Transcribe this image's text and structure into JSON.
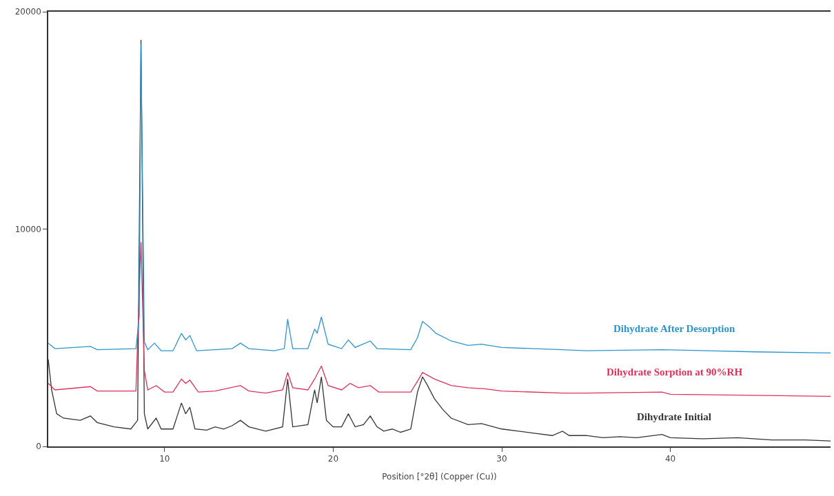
{
  "chart_data": {
    "type": "line",
    "xlabel": "Position [°2θ] (Copper (Cu))",
    "xlim": [
      3.1,
      49.5
    ],
    "xticks": [
      10,
      20,
      30,
      40
    ],
    "ylim": [
      0,
      20000
    ],
    "yticks": [
      0,
      10000,
      20000
    ],
    "legend": false,
    "marker": "none",
    "line_style": "solid",
    "series": [
      {
        "name": "Dihydrate After Desorption",
        "color": "#2a95cf",
        "x": [
          3.1,
          3.5,
          5.6,
          6,
          8.3,
          8.5,
          8.6,
          8.8,
          9.0,
          9.4,
          9.8,
          10.5,
          11.0,
          11.25,
          11.5,
          11.9,
          13,
          14.0,
          14.5,
          15,
          16.5,
          17.1,
          17.3,
          17.6,
          18.5,
          18.9,
          19.05,
          19.3,
          19.7,
          20.5,
          20.9,
          21.3,
          22.2,
          22.6,
          24.6,
          25.0,
          25.3,
          25.7,
          26.1,
          27,
          28,
          28.8,
          30,
          33.6,
          35,
          39.5,
          45,
          49.5
        ],
        "values": [
          4750,
          4500,
          4600,
          4450,
          4500,
          6000,
          18500,
          4800,
          4450,
          4750,
          4400,
          4400,
          5200,
          4900,
          5100,
          4400,
          4450,
          4500,
          4750,
          4500,
          4400,
          4500,
          5850,
          4500,
          4500,
          5400,
          5200,
          5950,
          4700,
          4500,
          4900,
          4550,
          4850,
          4500,
          4450,
          5000,
          5750,
          5500,
          5200,
          4850,
          4650,
          4700,
          4550,
          4450,
          4400,
          4450,
          4350,
          4300
        ]
      },
      {
        "name": "Dihydrate Sorption at 90%RH",
        "color": "#e0305a",
        "x": [
          3.1,
          3.5,
          5.6,
          6,
          8.3,
          8.6,
          8.8,
          9.0,
          9.5,
          10,
          10.5,
          11.0,
          11.25,
          11.5,
          12,
          13,
          14.5,
          15,
          16,
          17.0,
          17.3,
          17.6,
          18.5,
          18.9,
          19.3,
          19.7,
          20.5,
          21.0,
          21.5,
          22.2,
          22.7,
          24.6,
          25.0,
          25.3,
          26,
          27,
          28,
          29,
          30,
          33.6,
          35,
          39.5,
          40,
          45,
          49.5
        ],
        "values": [
          2900,
          2600,
          2750,
          2550,
          2550,
          9400,
          3500,
          2600,
          2800,
          2500,
          2500,
          3100,
          2900,
          3050,
          2500,
          2550,
          2800,
          2550,
          2450,
          2600,
          3400,
          2700,
          2600,
          3100,
          3700,
          2800,
          2600,
          2900,
          2700,
          2800,
          2500,
          2500,
          3000,
          3400,
          3100,
          2800,
          2700,
          2650,
          2550,
          2450,
          2450,
          2500,
          2400,
          2350,
          2300
        ]
      },
      {
        "name": "Dihydrate Initial",
        "color": "#333333",
        "x": [
          3.1,
          3.3,
          3.6,
          4.0,
          5.0,
          5.6,
          6.0,
          7.0,
          8.0,
          8.4,
          8.6,
          8.8,
          9.0,
          9.5,
          9.8,
          10.5,
          11.0,
          11.25,
          11.5,
          11.8,
          12.5,
          13.0,
          13.5,
          14.0,
          14.5,
          15.0,
          16.0,
          17.0,
          17.3,
          17.6,
          18.5,
          18.7,
          18.9,
          19.05,
          19.3,
          19.6,
          20.0,
          20.5,
          20.9,
          21.3,
          21.8,
          22.2,
          22.6,
          23.0,
          23.5,
          24.0,
          24.6,
          25.0,
          25.3,
          25.6,
          26.0,
          26.5,
          27.0,
          28.0,
          28.8,
          30,
          31,
          32,
          33,
          33.6,
          34,
          35,
          36,
          37,
          38,
          39.5,
          40,
          42,
          44,
          46,
          48,
          49.5
        ],
        "values": [
          4000,
          2600,
          1500,
          1300,
          1200,
          1400,
          1100,
          900,
          800,
          1200,
          18700,
          1500,
          800,
          1300,
          800,
          800,
          2000,
          1500,
          1800,
          800,
          750,
          900,
          800,
          950,
          1200,
          900,
          700,
          900,
          3100,
          900,
          1000,
          1800,
          2600,
          2000,
          3200,
          1200,
          900,
          900,
          1500,
          900,
          1000,
          1400,
          900,
          700,
          800,
          650,
          800,
          2500,
          3200,
          2800,
          2200,
          1700,
          1300,
          1000,
          1050,
          800,
          700,
          600,
          500,
          700,
          500,
          500,
          400,
          450,
          400,
          550,
          400,
          350,
          400,
          300,
          300,
          250
        ]
      }
    ]
  }
}
